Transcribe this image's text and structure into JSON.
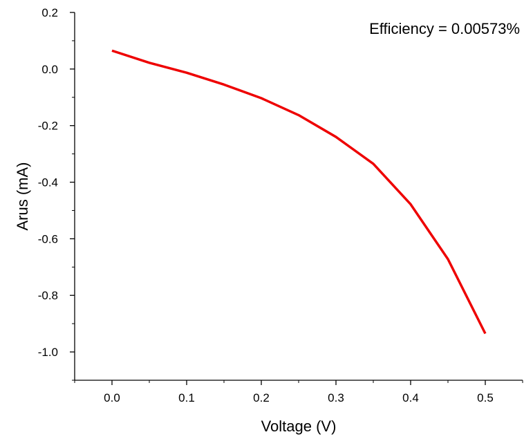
{
  "chart_data": {
    "type": "line",
    "xlabel": "Voltage (V)",
    "ylabel": "Arus (mA)",
    "xlim": [
      -0.05,
      0.55
    ],
    "ylim": [
      -1.1,
      0.2
    ],
    "x_ticks": [
      0.0,
      0.1,
      0.2,
      0.3,
      0.4,
      0.5
    ],
    "x_tick_labels": [
      "0.0",
      "0.1",
      "0.2",
      "0.3",
      "0.4",
      "0.5"
    ],
    "y_ticks": [
      0.2,
      0.0,
      -0.2,
      -0.4,
      -0.6,
      -0.8,
      -1.0
    ],
    "y_tick_labels": [
      "0.2",
      "0.0",
      "-0.2",
      "-0.4",
      "-0.6",
      "-0.8",
      "-1.0"
    ],
    "annotation": "Efficiency = 0.00573%",
    "grid": false,
    "series": [
      {
        "color": "#ee0000",
        "x": [
          0.0,
          0.05,
          0.1,
          0.15,
          0.2,
          0.25,
          0.3,
          0.35,
          0.4,
          0.45,
          0.5
        ],
        "y": [
          0.065,
          0.022,
          -0.013,
          -0.055,
          -0.103,
          -0.163,
          -0.24,
          -0.335,
          -0.478,
          -0.672,
          -0.935
        ]
      }
    ]
  }
}
